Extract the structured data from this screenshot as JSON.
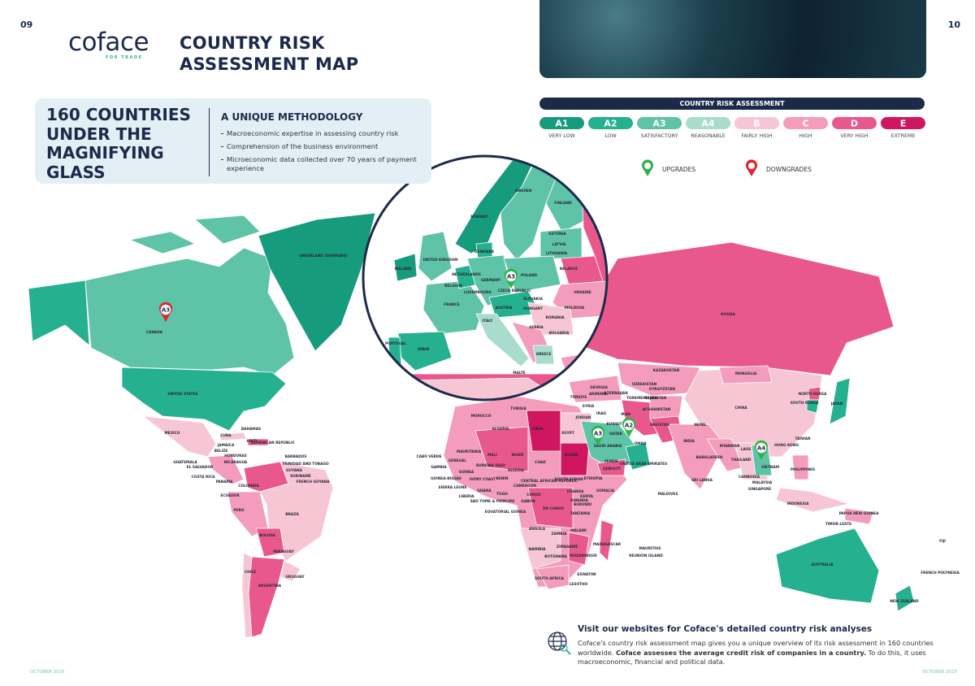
{
  "page_numbers": [
    "09",
    "10"
  ],
  "header": {
    "logo": "coface",
    "logo_tagline": "FOR TRADE",
    "title": [
      "COUNTRY RISK",
      "ASSESSMENT MAP"
    ]
  },
  "intro": {
    "headline": [
      "160 COUNTRIES",
      "UNDER THE",
      "MAGNIFYING",
      "GLASS"
    ],
    "methodology_title": "A UNIQUE METHODOLOGY",
    "points": [
      "Macroeconomic expertise in assessing country risk",
      "Comprehension of the business environment",
      "Microeconomic data collected over 70 years of payment experience"
    ]
  },
  "legend": {
    "title": "COUNTRY RISK ASSESSMENT",
    "grades": [
      {
        "code": "A1",
        "label": "VERY LOW",
        "color": "#179b7d"
      },
      {
        "code": "A2",
        "label": "LOW",
        "color": "#25b08f"
      },
      {
        "code": "A3",
        "label": "SATISFACTORY",
        "color": "#5ec3a7"
      },
      {
        "code": "A4",
        "label": "REASONABLE",
        "color": "#a9dccd"
      },
      {
        "code": "B",
        "label": "FAIRLY HIGH",
        "color": "#f7c6d5"
      },
      {
        "code": "C",
        "label": "HIGH",
        "color": "#f39cbb"
      },
      {
        "code": "D",
        "label": "VERY HIGH",
        "color": "#e9588c"
      },
      {
        "code": "E",
        "label": "EXTREME",
        "color": "#d11660"
      }
    ],
    "upgrades": "UPGRADES",
    "downgrades": "DOWNGRADES",
    "upgrade_color": "#2db34a",
    "downgrade_color": "#e0242f"
  },
  "map": {
    "labels": [
      "CANADA",
      "UNITED STATES",
      "GREENLAND (DENMARK)",
      "MEXICO",
      "CUBA",
      "BAHAMAS",
      "HAITI",
      "DOMINICAN REPUBLIC",
      "JAMAICA",
      "BELIZE",
      "HONDURAS",
      "GUATEMALA",
      "EL SALVADOR",
      "NICARAGUA",
      "COSTA RICA",
      "PANAMA",
      "BARBADOS",
      "TRINIDAD AND TOBAGO",
      "GUYANA",
      "SURINAME",
      "FRENCH GUYANA",
      "COLOMBIA",
      "ECUADOR",
      "PERU",
      "BRAZIL",
      "BOLIVIA",
      "PARAGUAY",
      "CHILE",
      "URUGUAY",
      "ARGENTINA",
      "NORWAY",
      "SWEDEN",
      "FINLAND",
      "ESTONIA",
      "LATVIA",
      "LITHUANIA",
      "DENMARK",
      "UNITED KINGDOM",
      "IRELAND",
      "NETHERLANDS",
      "BELGIUM",
      "GERMANY",
      "POLAND",
      "BELARUS",
      "LUXEMBOURG",
      "CZECH REPUBLIC",
      "UKRAINE",
      "SLOVAKIA",
      "FRANCE",
      "AUSTRIA",
      "HUNGARY",
      "MOLDOVA",
      "ROMANIA",
      "ITALY",
      "SERBIA",
      "BULGARIA",
      "PORTUGAL",
      "SPAIN",
      "GREECE",
      "MALTE",
      "RUSSIA",
      "KAZAKHSTAN",
      "MONGOLIA",
      "CHINA",
      "UZBEKISTAN",
      "TURKMENISTAN",
      "KYRGYZSTAN",
      "TAJIKISTAN",
      "AFGHANISTAN",
      "PAKISTAN",
      "INDIA",
      "NEPAL",
      "BANGLADESH",
      "SRI LANKA",
      "MALDIVES",
      "MYANMAR",
      "THAILAND",
      "LAOS",
      "VIETNAM",
      "CAMBODIA",
      "MALAYSIA",
      "SINGAPORE",
      "PHILIPPINES",
      "INDONESIA",
      "PAPUA NEW GUINEA",
      "TIMOR-LESTE",
      "TAIWAN",
      "HONG KONG",
      "SOUTH KOREA",
      "NORTH KOREA",
      "JAPAN",
      "AUSTRALIA",
      "NEW ZEALAND",
      "FIJI",
      "FRENCH POLYNESIA",
      "TÜRKIYE",
      "GEORGIA",
      "ARMENIA",
      "AZERBAIJAN",
      "SYRIA",
      "IRAQ",
      "IRAN",
      "JORDAN",
      "KUWAIT",
      "QATAR",
      "SAUDI ARABIA",
      "UNITED ARAB EMIRATES",
      "OMAN",
      "YEMEN",
      "DJIBOUTI",
      "EGYPT",
      "MOROCCO",
      "TUNISIA",
      "ALGERIA",
      "LIBYA",
      "MAURITANIA",
      "MALI",
      "NIGER",
      "CHAD",
      "SUDAN",
      "ETHIOPIA",
      "SOMALIA",
      "CABO VERDE",
      "SENEGAL",
      "GAMBIA",
      "GUINEA-BISSAU",
      "GUINEA",
      "SIERRA LEONE",
      "LIBERIA",
      "IVORY COAST",
      "BURKINA FASO",
      "GHANA",
      "TOGO",
      "BENIN",
      "NIGERIA",
      "CAMEROON",
      "CENTRAL AFRICAN REPUBLIC",
      "SOUTH SUDAN",
      "SAO TOME & PRINCIPE",
      "EQUATORIAL GUINEA",
      "GABON",
      "CONGO",
      "DR CONGO",
      "UGANDA",
      "KENYA",
      "RWANDA",
      "BURUNDI",
      "TANZANIA",
      "ANGOLA",
      "ZAMBIA",
      "MALAWI",
      "MOZAMBIQUE",
      "ZIMBABWE",
      "NAMIBIA",
      "BOTSWANA",
      "SOUTH AFRICA",
      "ESWATINI",
      "LESOTHO",
      "MADAGASCAR",
      "MAURITIUS",
      "REUNION ISLAND"
    ],
    "markers": [
      {
        "grade": "A3",
        "kind": "downgrade"
      },
      {
        "grade": "A3",
        "kind": "upgrade"
      },
      {
        "grade": "A3",
        "kind": "upgrade"
      },
      {
        "grade": "A2",
        "kind": "upgrade"
      },
      {
        "grade": "A4",
        "kind": "upgrade"
      }
    ]
  },
  "footer": {
    "heading": "Visit our websites for Coface's detailed country risk analyses",
    "text": [
      "Coface's country risk assessment map gives you a unique overview of its risk assessment in 160 countries worldwide. ",
      "Coface assesses the average credit risk of companies in a country.",
      " To do this, it uses macroeconomic, financial and political data."
    ],
    "date_left": "OCTOBER 2025",
    "date_right": "OCTOBER 2025"
  }
}
